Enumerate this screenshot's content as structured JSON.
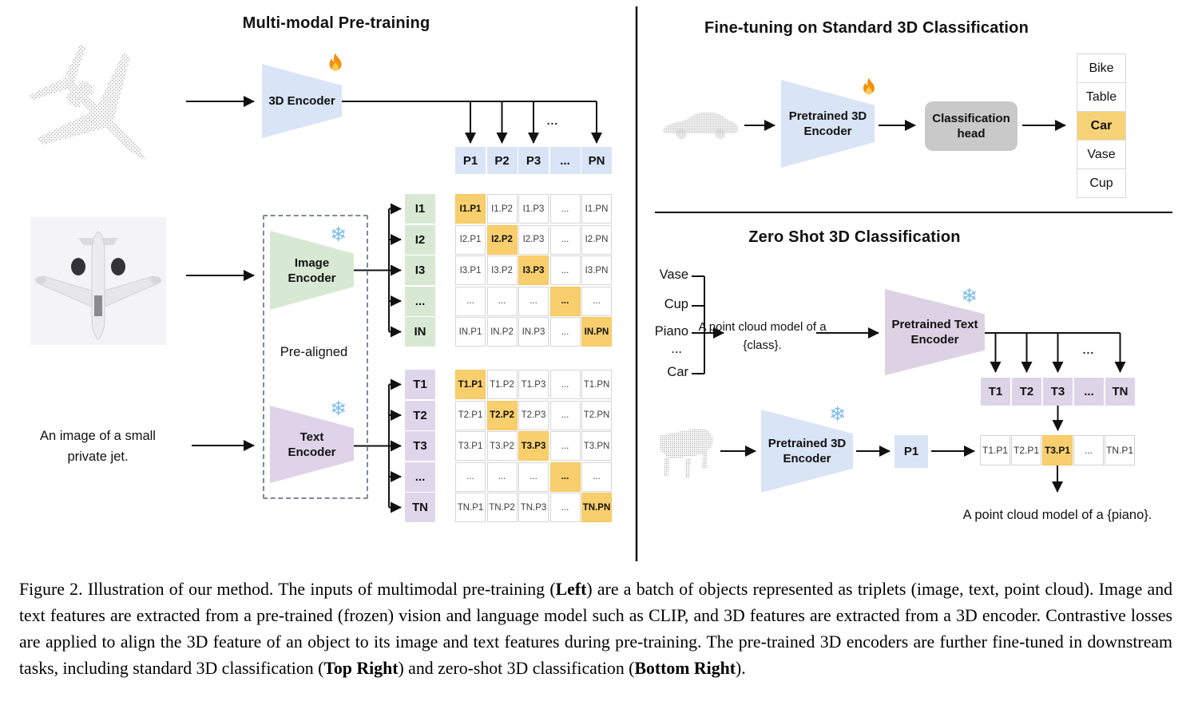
{
  "left": {
    "title": "Multi-modal Pre-training",
    "encoder_3d_label": "3D Encoder",
    "image_encoder_label": "Image Encoder",
    "text_encoder_label": "Text Encoder",
    "pre_aligned_label": "Pre-aligned",
    "input_text": "An image of a small private jet.",
    "ellipsis": "...",
    "p_row": [
      "P1",
      "P2",
      "P3",
      "...",
      "PN"
    ],
    "i_headers": [
      "I1",
      "I2",
      "I3",
      "...",
      "IN"
    ],
    "i_matrix": [
      [
        "I1.P1",
        "I1.P2",
        "I1.P3",
        "...",
        "I1.PN"
      ],
      [
        "I2.P1",
        "I2.P2",
        "I2.P3",
        "...",
        "I2.PN"
      ],
      [
        "I3.P1",
        "I3.P2",
        "I3.P3",
        "...",
        "I3.PN"
      ],
      [
        "...",
        "...",
        "...",
        "...",
        "..."
      ],
      [
        "IN.P1",
        "IN.P2",
        "IN.P3",
        "...",
        "IN.PN"
      ]
    ],
    "t_headers": [
      "T1",
      "T2",
      "T3",
      "...",
      "TN"
    ],
    "t_matrix": [
      [
        "T1.P1",
        "T1.P2",
        "T1.P3",
        "...",
        "T1.PN"
      ],
      [
        "T2.P1",
        "T2.P2",
        "T2.P3",
        "...",
        "T2.PN"
      ],
      [
        "T3.P1",
        "T3.P2",
        "T3.P3",
        "...",
        "T3.PN"
      ],
      [
        "...",
        "...",
        "...",
        "...",
        "..."
      ],
      [
        "TN.P1",
        "TN.P2",
        "TN.P3",
        "...",
        "TN.PN"
      ]
    ]
  },
  "top_right": {
    "title": "Fine-tuning on Standard 3D Classification",
    "encoder_label": "Pretrained 3D Encoder",
    "head_label": "Classification head",
    "classes": [
      "Bike",
      "Table",
      "Car",
      "Vase",
      "Cup"
    ],
    "highlighted_class": "Car"
  },
  "bottom_right": {
    "title": "Zero Shot 3D Classification",
    "class_names": [
      "Vase",
      "Cup",
      "Piano",
      "...",
      "Car"
    ],
    "prompt_template": "A point cloud model of a {class}.",
    "text_encoder_label": "Pretrained Text Encoder",
    "encoder_3d_label": "Pretrained 3D Encoder",
    "p_cell": "P1",
    "t_row": [
      "T1",
      "T2",
      "T3",
      "...",
      "TN"
    ],
    "result_row": [
      "T1.P1",
      "T2.P1",
      "T3.P1",
      "...",
      "TN.P1"
    ],
    "highlighted_result": "T3.P1",
    "result_text": "A point cloud model of a {piano}.",
    "ellipsis": "..."
  },
  "icons": {
    "trainable": "fire-icon",
    "frozen": "snowflake-icon",
    "snowflake_glyph": "❄"
  },
  "colors": {
    "encoder_blue": "#d9e4f6",
    "encoder_green": "#d8e9d3",
    "encoder_purple": "#ded3e9",
    "highlight_orange": "#f9cf6e",
    "class_highlight_orange": "#f8d276",
    "head_gray": "#c9c9ca"
  },
  "caption": {
    "segments": [
      {
        "text": "Figure 2. Illustration of our method. The inputs of multimodal pre-training (",
        "bold": false
      },
      {
        "text": "Left",
        "bold": true
      },
      {
        "text": ") are a batch of objects represented as triplets (image, text, point cloud). Image and text features are extracted from a pre-trained (frozen) vision and language model such as CLIP, and 3D features are extracted from a 3D encoder. Contrastive losses are applied to align the 3D feature of an object to its image and text features during pre-training. The pre-trained 3D encoders are further fine-tuned in downstream tasks, including standard 3D classification (",
        "bold": false
      },
      {
        "text": "Top Right",
        "bold": true
      },
      {
        "text": ") and zero-shot 3D classification (",
        "bold": false
      },
      {
        "text": "Bottom Right",
        "bold": true
      },
      {
        "text": ").",
        "bold": false
      }
    ]
  }
}
